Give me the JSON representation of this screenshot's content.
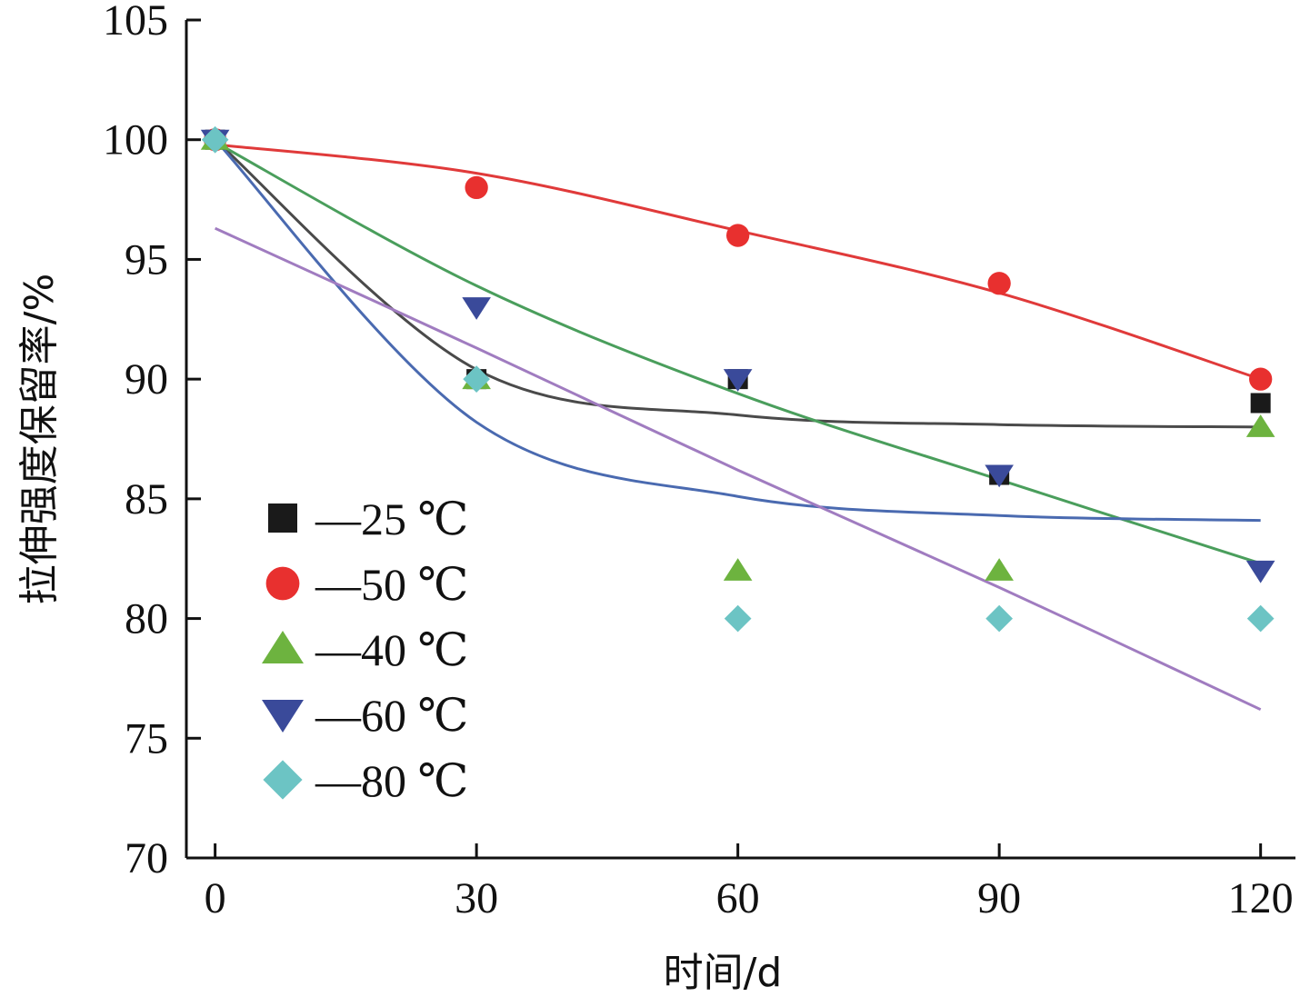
{
  "chart_data": {
    "type": "scatter",
    "xlabel": "时间/d",
    "ylabel": "拉伸强度保留率/%",
    "xlim": [
      -3.3,
      124
    ],
    "ylim": [
      70,
      105
    ],
    "xticks": [
      "0",
      "30",
      "60",
      "90",
      "120"
    ],
    "yticks": [
      "70",
      "75",
      "80",
      "85",
      "90",
      "95",
      "100",
      "105"
    ],
    "x": [
      0,
      30,
      60,
      90,
      120
    ],
    "grid": false,
    "legend_position": "lower-left",
    "series": [
      {
        "name": "—25 ℃",
        "marker": "square",
        "color": "#1a1a1a",
        "line_color": "#4a4a4a",
        "values": [
          100,
          90,
          90,
          86,
          89
        ],
        "fit": {
          "x": [
            0,
            30,
            60,
            90,
            120
          ],
          "y": [
            100,
            90.4,
            88.5,
            88.1,
            88.0
          ]
        }
      },
      {
        "name": "—50 ℃",
        "marker": "circle",
        "color": "#e8302f",
        "line_color": "#e03a3a",
        "values": [
          100,
          98,
          96,
          94,
          90
        ],
        "fit": {
          "x": [
            0,
            30,
            60,
            90,
            120
          ],
          "y": [
            99.8,
            98.6,
            96.2,
            93.6,
            90.0
          ]
        }
      },
      {
        "name": "—40 ℃",
        "marker": "triangle-up",
        "color": "#6db33f",
        "line_color": "#4a9e5c",
        "values": [
          100,
          90,
          82,
          82,
          88
        ],
        "fit": {
          "x": [
            0,
            30,
            60,
            90,
            120
          ],
          "y": [
            99.9,
            93.9,
            89.4,
            85.8,
            82.3
          ]
        }
      },
      {
        "name": "—60 ℃",
        "marker": "triangle-down",
        "color": "#3a4a9a",
        "line_color": "#4a6ab0",
        "values": [
          100,
          93,
          90,
          86,
          82
        ],
        "fit": {
          "x": [
            0,
            30,
            60,
            90,
            120
          ],
          "y": [
            100,
            88.2,
            85.1,
            84.3,
            84.1
          ]
        }
      },
      {
        "name": "—80 ℃",
        "marker": "diamond",
        "color": "#6cc4c4",
        "line_color": "#a07cc0",
        "values": [
          100,
          90,
          80,
          80,
          80
        ],
        "fit": {
          "x": [
            0,
            30,
            60,
            90,
            120
          ],
          "y": [
            96.3,
            91.3,
            86.2,
            81.3,
            76.2
          ]
        }
      }
    ]
  }
}
